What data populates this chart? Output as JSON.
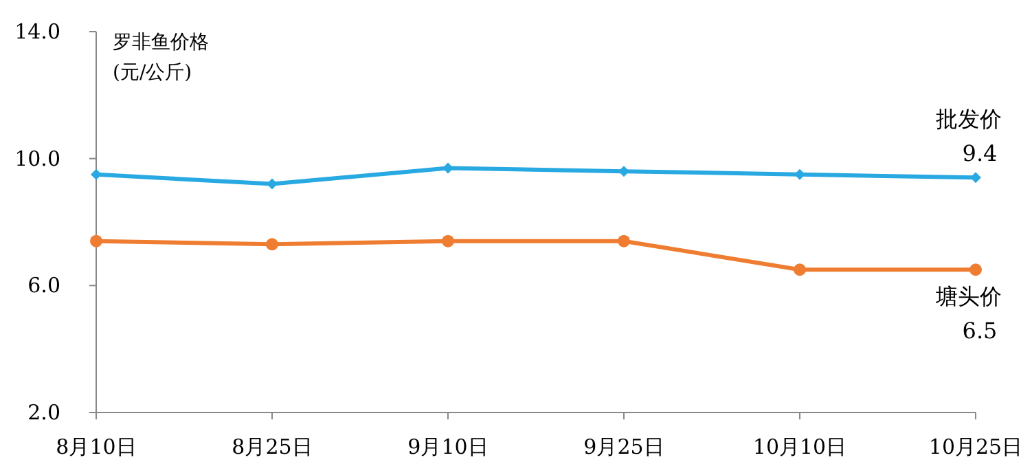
{
  "chart_data": {
    "type": "line",
    "ylabel": "罗非鱼价格\n(元/公斤)",
    "categories": [
      "8月10日",
      "8月25日",
      "9月10日",
      "9月25日",
      "10月10日",
      "10月25日"
    ],
    "ylim": [
      2,
      14
    ],
    "yticks": [
      {
        "value": 2,
        "label": "2.0"
      },
      {
        "value": 6,
        "label": "6.0"
      },
      {
        "value": 10,
        "label": "10.0"
      },
      {
        "value": 14,
        "label": "14.0"
      }
    ],
    "grid": false,
    "series": [
      {
        "name": "批发价",
        "color": "#29a9e1",
        "marker": "diamond",
        "values": [
          9.5,
          9.2,
          9.7,
          9.6,
          9.5,
          9.4
        ],
        "value_labels": [
          null,
          null,
          null,
          null,
          null,
          "9.4"
        ]
      },
      {
        "name": "塘头价",
        "color": "#ef7d31",
        "marker": "circle",
        "values": [
          7.4,
          7.3,
          7.4,
          7.4,
          6.5,
          6.5
        ],
        "value_labels": [
          null,
          null,
          null,
          null,
          null,
          "6.5"
        ]
      }
    ]
  }
}
